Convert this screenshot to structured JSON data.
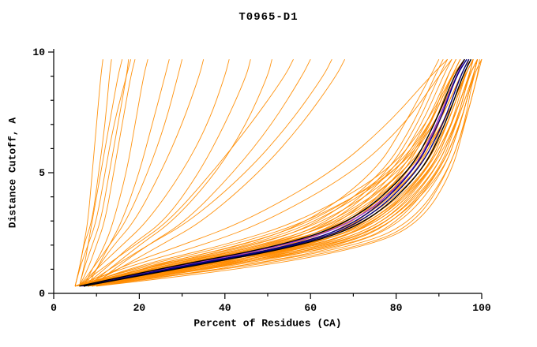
{
  "chart_data": {
    "type": "line",
    "title": "T0965-D1",
    "xlabel": "Percent of Residues (CA)",
    "ylabel": "Distance Cutoff, A",
    "xlim": [
      0,
      100
    ],
    "ylim": [
      0,
      10
    ],
    "x_major_ticks": [
      0,
      20,
      40,
      60,
      80,
      100
    ],
    "x_minor_ticks": [
      10,
      30,
      50,
      70,
      90
    ],
    "y_major_ticks": [
      0,
      5,
      10
    ],
    "y_minor_ticks": [
      1,
      2,
      3,
      4,
      6,
      7,
      8,
      9
    ],
    "legend": "none",
    "grid": false,
    "colors": {
      "model_lines": "#ff8c00",
      "highlight_navy": "#000080",
      "highlight_black": "#000000",
      "highlight_purple": "#9932cc",
      "axis": "#000000"
    },
    "y_levels": [
      0.3,
      1,
      2,
      3,
      5,
      7,
      9,
      9.7
    ],
    "orange_curves": [
      [
        5,
        6,
        7,
        8,
        9,
        10,
        11,
        11.5
      ],
      [
        6,
        7,
        8,
        9,
        11,
        13,
        15,
        16
      ],
      [
        6,
        8,
        10,
        12,
        14,
        16,
        18,
        19
      ],
      [
        7,
        9,
        12,
        14,
        17,
        19,
        21,
        22
      ],
      [
        5,
        6,
        8,
        10,
        12,
        14,
        17,
        18
      ],
      [
        8,
        10,
        13,
        16,
        20,
        23,
        26,
        27
      ],
      [
        6,
        9,
        13,
        17,
        22,
        26,
        29,
        30
      ],
      [
        7,
        10,
        14,
        19,
        25,
        30,
        34,
        35
      ],
      [
        6,
        10,
        16,
        22,
        30,
        36,
        40,
        41
      ],
      [
        7,
        12,
        18,
        26,
        34,
        40,
        45,
        46
      ],
      [
        8,
        13,
        20,
        28,
        38,
        45,
        50,
        51
      ],
      [
        6,
        11,
        19,
        27,
        37,
        46,
        54,
        56
      ],
      [
        9,
        14,
        22,
        31,
        42,
        51,
        58,
        60
      ],
      [
        7,
        13,
        22,
        32,
        45,
        55,
        63,
        65
      ],
      [
        8,
        15,
        25,
        35,
        48,
        58,
        66,
        68
      ],
      [
        5,
        18,
        45,
        60,
        75,
        82,
        88,
        90
      ],
      [
        6,
        20,
        48,
        63,
        77,
        84,
        89,
        91
      ],
      [
        7,
        22,
        50,
        65,
        78,
        85,
        90,
        92
      ],
      [
        5,
        24,
        52,
        66,
        79,
        86,
        91,
        93
      ],
      [
        8,
        26,
        54,
        68,
        80,
        87,
        92,
        94
      ],
      [
        6,
        28,
        56,
        70,
        81,
        88,
        92,
        94
      ],
      [
        9,
        30,
        58,
        71,
        82,
        88,
        93,
        95
      ],
      [
        7,
        32,
        60,
        72,
        83,
        89,
        93,
        95
      ],
      [
        5,
        25,
        55,
        70,
        84,
        90,
        94,
        96
      ],
      [
        8,
        27,
        57,
        72,
        85,
        90,
        94,
        96
      ],
      [
        6,
        29,
        59,
        73,
        85,
        91,
        95,
        97
      ],
      [
        9,
        31,
        61,
        74,
        86,
        91,
        95,
        97
      ],
      [
        7,
        33,
        63,
        76,
        87,
        92,
        96,
        97
      ],
      [
        5,
        22,
        58,
        74,
        87,
        92,
        96,
        98
      ],
      [
        8,
        24,
        60,
        75,
        88,
        93,
        96,
        98
      ],
      [
        6,
        26,
        62,
        77,
        88,
        93,
        97,
        98
      ],
      [
        9,
        28,
        64,
        78,
        89,
        94,
        97,
        98
      ],
      [
        7,
        30,
        66,
        79,
        89,
        94,
        97,
        99
      ],
      [
        5,
        32,
        68,
        80,
        90,
        95,
        98,
        99
      ],
      [
        8,
        34,
        70,
        81,
        90,
        95,
        98,
        99
      ],
      [
        6,
        21,
        50,
        68,
        83,
        90,
        95,
        97
      ],
      [
        9,
        23,
        52,
        70,
        84,
        91,
        95,
        97
      ],
      [
        7,
        25,
        54,
        71,
        85,
        91,
        96,
        98
      ],
      [
        5,
        27,
        56,
        73,
        86,
        92,
        96,
        98
      ],
      [
        8,
        29,
        58,
        74,
        86,
        92,
        96,
        98
      ],
      [
        6,
        31,
        60,
        75,
        87,
        93,
        97,
        98
      ],
      [
        9,
        33,
        62,
        76,
        87,
        93,
        97,
        99
      ],
      [
        7,
        35,
        64,
        78,
        88,
        94,
        97,
        99
      ],
      [
        5,
        20,
        46,
        62,
        80,
        88,
        93,
        96
      ],
      [
        8,
        36,
        66,
        79,
        89,
        94,
        98,
        99
      ],
      [
        6,
        38,
        68,
        80,
        90,
        95,
        98,
        99
      ],
      [
        10,
        40,
        70,
        82,
        91,
        95,
        98,
        99
      ],
      [
        7,
        16,
        40,
        58,
        78,
        87,
        93,
        95
      ],
      [
        9,
        19,
        44,
        61,
        79,
        88,
        93,
        96
      ],
      [
        6,
        17,
        42,
        60,
        80,
        89,
        94,
        96
      ],
      [
        8,
        40,
        72,
        84,
        92,
        96,
        98,
        100
      ],
      [
        10,
        45,
        75,
        86,
        93,
        96,
        99,
        100
      ],
      [
        7,
        42,
        74,
        85,
        92,
        96,
        99,
        99.5
      ],
      [
        6,
        19,
        47,
        64,
        81,
        89,
        94,
        96
      ],
      [
        8,
        21,
        49,
        66,
        82,
        90,
        95,
        97
      ],
      [
        7,
        23,
        51,
        67,
        82,
        90,
        95,
        97
      ],
      [
        5,
        28,
        60,
        76,
        88,
        93,
        97,
        98
      ],
      [
        9,
        34,
        65,
        79,
        90,
        94,
        98,
        99
      ],
      [
        6,
        24,
        53,
        69,
        83,
        91,
        96,
        98
      ],
      [
        8,
        30,
        62,
        77,
        88,
        93,
        97,
        99
      ],
      [
        10,
        36,
        67,
        80,
        91,
        95,
        98,
        100
      ],
      [
        5,
        15,
        35,
        50,
        70,
        82,
        90,
        93
      ],
      [
        7,
        14,
        30,
        45,
        65,
        78,
        88,
        92
      ],
      [
        5,
        6,
        7,
        9,
        10.5,
        12,
        13,
        13.5
      ],
      [
        6,
        7,
        9,
        11,
        13,
        15,
        17,
        17.5
      ]
    ],
    "highlight_curves": [
      {
        "name": "purple-model",
        "color_key": "highlight_purple",
        "x": [
          6.5,
          25,
          55,
          71,
          84,
          89.5,
          94,
          96
        ]
      },
      {
        "name": "navy-model-1",
        "color_key": "highlight_navy",
        "x": [
          7,
          26,
          57,
          72,
          84,
          90,
          94,
          96.5
        ]
      },
      {
        "name": "navy-model-2",
        "color_key": "highlight_navy",
        "x": [
          7,
          27,
          58,
          73,
          85,
          91,
          95,
          97
        ]
      },
      {
        "name": "black-model-1",
        "color_key": "highlight_black",
        "x": [
          7,
          28,
          59,
          74,
          86,
          91.5,
          95.5,
          97.5
        ]
      },
      {
        "name": "black-model-2",
        "color_key": "highlight_black",
        "x": [
          6,
          24,
          54,
          70,
          83,
          89,
          93.5,
          96
        ]
      }
    ]
  }
}
